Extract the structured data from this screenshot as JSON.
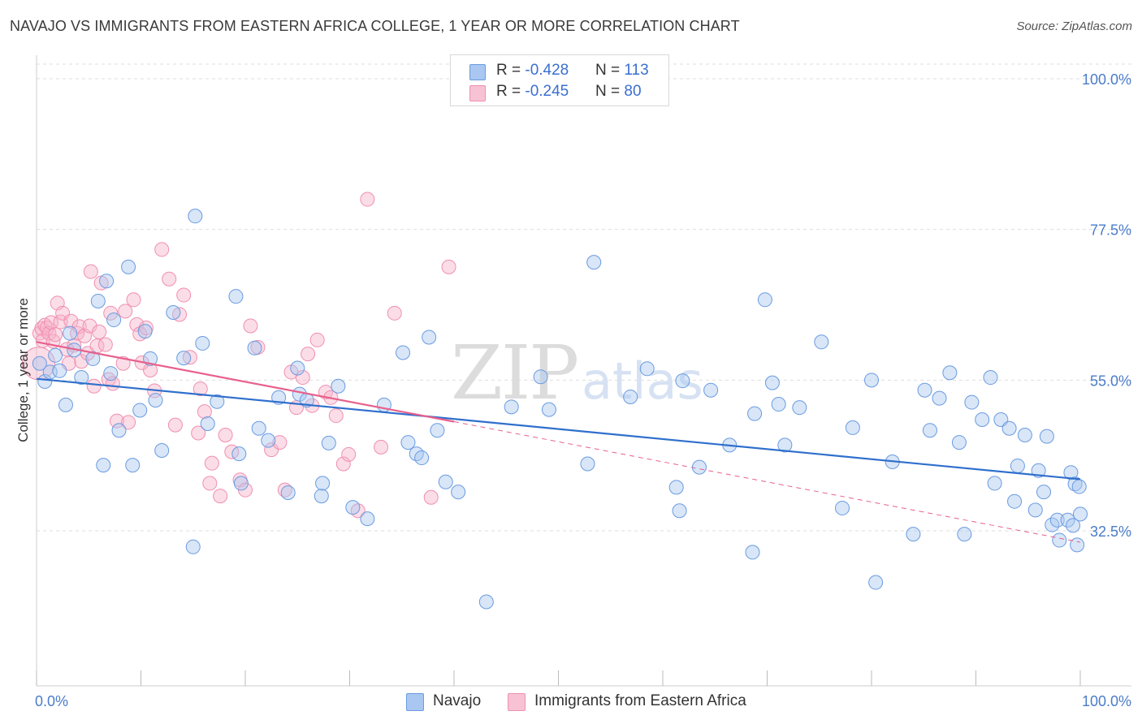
{
  "title": "NAVAJO VS IMMIGRANTS FROM EASTERN AFRICA COLLEGE, 1 YEAR OR MORE CORRELATION CHART",
  "source": "Source: ZipAtlas.com",
  "watermark": {
    "zip": "ZIP",
    "atlas": "atlas"
  },
  "legend_top": [
    {
      "r_label": "R = ",
      "r_value": "-0.428",
      "n_label": "N = ",
      "n_value": "113",
      "color": "#a9c7f0"
    },
    {
      "r_label": "R = ",
      "r_value": "-0.245",
      "n_label": "N = ",
      "n_value": "80",
      "color": "#f7b3c9"
    }
  ],
  "legend_bottom": [
    {
      "label": "Navajo",
      "color": "#a9c7f0"
    },
    {
      "label": "Immigrants from Eastern Africa",
      "color": "#f7b3c9"
    }
  ],
  "chart_data": {
    "type": "scatter",
    "title": "NAVAJO VS IMMIGRANTS FROM EASTERN AFRICA COLLEGE, 1 YEAR OR MORE CORRELATION CHART",
    "xlabel": "",
    "ylabel": "College, 1 year or more",
    "xlim": [
      0,
      100
    ],
    "ylim": [
      10,
      105
    ],
    "x_tick_labels": [
      "0.0%",
      "100.0%"
    ],
    "y_ticks": [
      32.5,
      55.0,
      77.5,
      100.0
    ],
    "y_tick_labels": [
      "32.5%",
      "55.0%",
      "77.5%",
      "100.0%"
    ],
    "grid": true,
    "legend_placement": "top-center",
    "colors": {
      "navajo": "#6a9be0",
      "eastern_africa": "#f08fb0",
      "navajo_line": "#2f6fcc",
      "eastern_africa_line": "#e8608c"
    },
    "series": [
      {
        "name": "Navajo",
        "trend": {
          "x": [
            0,
            100
          ],
          "y": [
            55.2,
            40.2
          ]
        },
        "points": [
          [
            0.3,
            57.5
          ],
          [
            0.8,
            54.8
          ],
          [
            1.3,
            56.2
          ],
          [
            1.8,
            58.7
          ],
          [
            2.2,
            56.4
          ],
          [
            2.8,
            51.3
          ],
          [
            3.2,
            62.0
          ],
          [
            3.6,
            59.5
          ],
          [
            4.3,
            55.4
          ],
          [
            5.4,
            58.2
          ],
          [
            5.9,
            66.8
          ],
          [
            6.4,
            42.3
          ],
          [
            6.7,
            69.8
          ],
          [
            7.1,
            56.0
          ],
          [
            7.4,
            64.0
          ],
          [
            7.9,
            47.5
          ],
          [
            8.8,
            71.9
          ],
          [
            9.2,
            42.3
          ],
          [
            9.9,
            50.5
          ],
          [
            10.4,
            62.3
          ],
          [
            10.9,
            58.2
          ],
          [
            11.4,
            52.0
          ],
          [
            12.0,
            44.5
          ],
          [
            13.1,
            65.1
          ],
          [
            14.1,
            58.3
          ],
          [
            15.0,
            30.1
          ],
          [
            15.2,
            79.5
          ],
          [
            15.9,
            60.5
          ],
          [
            16.4,
            48.5
          ],
          [
            17.3,
            51.8
          ],
          [
            19.1,
            67.5
          ],
          [
            19.4,
            44.0
          ],
          [
            19.6,
            39.6
          ],
          [
            20.9,
            59.8
          ],
          [
            21.3,
            47.8
          ],
          [
            22.2,
            46.0
          ],
          [
            23.2,
            52.4
          ],
          [
            24.1,
            38.2
          ],
          [
            25.0,
            56.8
          ],
          [
            25.2,
            52.9
          ],
          [
            25.9,
            52.0
          ],
          [
            27.3,
            37.7
          ],
          [
            27.4,
            39.6
          ],
          [
            28.0,
            45.6
          ],
          [
            28.9,
            54.1
          ],
          [
            30.3,
            36.0
          ],
          [
            31.7,
            34.3
          ],
          [
            33.3,
            51.3
          ],
          [
            35.1,
            59.1
          ],
          [
            35.6,
            45.7
          ],
          [
            36.4,
            44.0
          ],
          [
            36.9,
            43.4
          ],
          [
            37.6,
            61.4
          ],
          [
            38.4,
            47.5
          ],
          [
            39.2,
            39.8
          ],
          [
            40.4,
            38.3
          ],
          [
            43.1,
            21.9
          ],
          [
            45.5,
            51.0
          ],
          [
            48.3,
            55.5
          ],
          [
            49.1,
            50.6
          ],
          [
            52.8,
            42.5
          ],
          [
            53.4,
            72.6
          ],
          [
            56.9,
            52.5
          ],
          [
            58.5,
            56.7
          ],
          [
            61.3,
            39.0
          ],
          [
            61.6,
            35.5
          ],
          [
            61.9,
            54.9
          ],
          [
            63.5,
            42.0
          ],
          [
            64.6,
            53.5
          ],
          [
            66.4,
            45.3
          ],
          [
            68.6,
            29.3
          ],
          [
            68.8,
            50.0
          ],
          [
            69.8,
            67.0
          ],
          [
            70.5,
            54.6
          ],
          [
            71.1,
            51.4
          ],
          [
            71.7,
            45.3
          ],
          [
            73.1,
            50.9
          ],
          [
            75.2,
            60.7
          ],
          [
            77.2,
            35.9
          ],
          [
            78.2,
            47.9
          ],
          [
            80.0,
            55.0
          ],
          [
            80.4,
            24.8
          ],
          [
            82.0,
            42.8
          ],
          [
            84.0,
            32.0
          ],
          [
            85.1,
            53.5
          ],
          [
            85.6,
            47.5
          ],
          [
            86.5,
            52.3
          ],
          [
            87.5,
            56.1
          ],
          [
            88.4,
            45.7
          ],
          [
            88.9,
            32.0
          ],
          [
            89.6,
            51.7
          ],
          [
            90.6,
            49.1
          ],
          [
            91.4,
            55.4
          ],
          [
            91.8,
            39.6
          ],
          [
            92.4,
            49.1
          ],
          [
            93.2,
            47.8
          ],
          [
            93.7,
            36.9
          ],
          [
            94.0,
            42.2
          ],
          [
            94.7,
            46.8
          ],
          [
            95.7,
            35.6
          ],
          [
            96.0,
            41.5
          ],
          [
            96.5,
            38.3
          ],
          [
            96.8,
            46.6
          ],
          [
            97.3,
            33.4
          ],
          [
            97.8,
            34.1
          ],
          [
            98.0,
            31.1
          ],
          [
            98.8,
            34.1
          ],
          [
            99.1,
            41.2
          ],
          [
            99.3,
            33.3
          ],
          [
            99.5,
            39.5
          ],
          [
            99.7,
            30.4
          ],
          [
            99.9,
            39.1
          ],
          [
            100.0,
            35.0
          ]
        ]
      },
      {
        "name": "Immigrants from Eastern Africa",
        "trend": {
          "x": [
            0,
            40
          ],
          "y": [
            60.7,
            48.8
          ]
        },
        "trend_extension": {
          "x": [
            40,
            100
          ],
          "y": [
            48.8,
            30.8
          ]
        },
        "points": [
          [
            0.3,
            62.0
          ],
          [
            0.5,
            62.7
          ],
          [
            0.6,
            60.9
          ],
          [
            0.8,
            63.2
          ],
          [
            1.0,
            62.8
          ],
          [
            1.2,
            62.0
          ],
          [
            1.4,
            63.6
          ],
          [
            1.6,
            60.8
          ],
          [
            1.8,
            61.8
          ],
          [
            2.0,
            66.5
          ],
          [
            2.3,
            63.7
          ],
          [
            2.5,
            65.0
          ],
          [
            2.9,
            59.6
          ],
          [
            3.1,
            57.5
          ],
          [
            3.3,
            63.8
          ],
          [
            3.6,
            60.2
          ],
          [
            3.9,
            62.0
          ],
          [
            4.1,
            63.0
          ],
          [
            4.3,
            57.8
          ],
          [
            4.6,
            61.6
          ],
          [
            4.9,
            59.0
          ],
          [
            5.1,
            63.1
          ],
          [
            5.2,
            71.2
          ],
          [
            5.5,
            54.1
          ],
          [
            5.8,
            60.1
          ],
          [
            6.0,
            62.2
          ],
          [
            6.2,
            69.5
          ],
          [
            6.6,
            60.3
          ],
          [
            6.9,
            55.1
          ],
          [
            7.1,
            65.0
          ],
          [
            7.3,
            54.5
          ],
          [
            7.7,
            48.9
          ],
          [
            8.3,
            57.5
          ],
          [
            8.5,
            65.3
          ],
          [
            8.8,
            48.7
          ],
          [
            9.3,
            67.0
          ],
          [
            9.6,
            63.3
          ],
          [
            9.9,
            61.9
          ],
          [
            10.1,
            57.6
          ],
          [
            10.5,
            62.8
          ],
          [
            10.9,
            56.5
          ],
          [
            11.3,
            53.4
          ],
          [
            12.0,
            74.5
          ],
          [
            12.7,
            70.1
          ],
          [
            13.3,
            48.3
          ],
          [
            13.7,
            64.8
          ],
          [
            14.1,
            67.7
          ],
          [
            14.7,
            58.4
          ],
          [
            15.5,
            47.1
          ],
          [
            15.7,
            53.7
          ],
          [
            16.1,
            50.3
          ],
          [
            16.6,
            39.6
          ],
          [
            16.8,
            42.6
          ],
          [
            17.6,
            37.7
          ],
          [
            18.1,
            46.8
          ],
          [
            18.7,
            44.3
          ],
          [
            19.5,
            40.1
          ],
          [
            20.0,
            38.6
          ],
          [
            20.5,
            63.1
          ],
          [
            21.2,
            59.9
          ],
          [
            22.5,
            44.6
          ],
          [
            23.3,
            45.7
          ],
          [
            23.8,
            38.6
          ],
          [
            24.4,
            56.2
          ],
          [
            24.9,
            50.9
          ],
          [
            25.5,
            55.4
          ],
          [
            26.0,
            58.9
          ],
          [
            26.4,
            51.2
          ],
          [
            26.9,
            61.0
          ],
          [
            27.7,
            53.2
          ],
          [
            28.2,
            52.4
          ],
          [
            28.7,
            49.7
          ],
          [
            29.4,
            42.5
          ],
          [
            29.9,
            43.9
          ],
          [
            30.8,
            35.5
          ],
          [
            31.7,
            82.0
          ],
          [
            33.0,
            45.0
          ],
          [
            34.3,
            65.0
          ],
          [
            37.8,
            37.5
          ],
          [
            39.5,
            71.9
          ]
        ]
      }
    ]
  }
}
